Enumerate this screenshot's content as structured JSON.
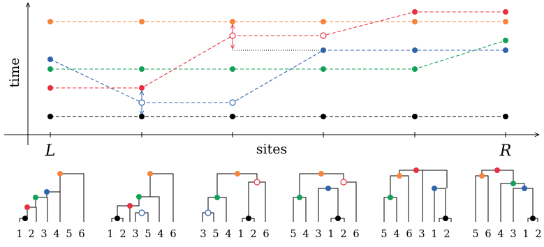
{
  "colors": {
    "orange": "#f6843c",
    "red": "#e8303f",
    "blue": "#2f64ad",
    "green": "#12a157",
    "black": "#000000"
  },
  "axes": {
    "y_label": "time",
    "x_label": "sites",
    "left_label": "L",
    "right_label": "R"
  },
  "trees": [
    {
      "leaves": [
        "1",
        "2",
        "3",
        "4",
        "5",
        "6"
      ]
    },
    {
      "leaves": [
        "1",
        "2",
        "3",
        "5",
        "4",
        "6"
      ]
    },
    {
      "leaves": [
        "3",
        "5",
        "4",
        "1",
        "2",
        "6"
      ]
    },
    {
      "leaves": [
        "5",
        "4",
        "3",
        "1",
        "2",
        "6"
      ]
    },
    {
      "leaves": [
        "5",
        "4",
        "6",
        "3",
        "1",
        "2"
      ]
    },
    {
      "leaves": [
        "5",
        "6",
        "4",
        "3",
        "1",
        "2"
      ]
    }
  ]
}
